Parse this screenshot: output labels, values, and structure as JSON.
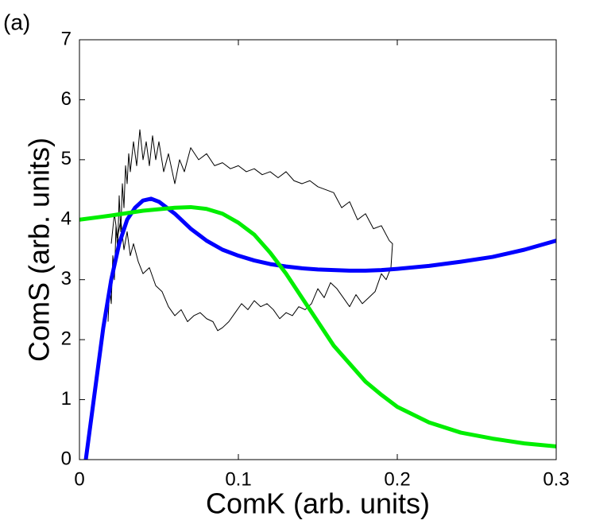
{
  "chart_data": {
    "type": "line",
    "panel_label": "(a)",
    "xlabel": "ComK (arb. units)",
    "ylabel": "ComS (arb. units)",
    "xlim": [
      0,
      0.3
    ],
    "xticks": [
      0,
      0.1,
      0.2,
      0.3
    ],
    "ylim": [
      0,
      7
    ],
    "yticks": [
      0,
      1,
      2,
      3,
      4,
      5,
      6,
      7
    ],
    "grid": false,
    "series": [
      {
        "color": "#000000",
        "linewidth": 1,
        "x": [
          0.018,
          0.019,
          0.02,
          0.021,
          0.022,
          0.023,
          0.024,
          0.025,
          0.026,
          0.027,
          0.028,
          0.029,
          0.03,
          0.031,
          0.032,
          0.034,
          0.036,
          0.038,
          0.04,
          0.042,
          0.044,
          0.046,
          0.048,
          0.05,
          0.053,
          0.056,
          0.06,
          0.063,
          0.066,
          0.07,
          0.075,
          0.08,
          0.085,
          0.09,
          0.095,
          0.1,
          0.105,
          0.11,
          0.115,
          0.12,
          0.125,
          0.13,
          0.135,
          0.14,
          0.145,
          0.15,
          0.155,
          0.16,
          0.165,
          0.17,
          0.175,
          0.18,
          0.185,
          0.19,
          0.195,
          0.197,
          0.196,
          0.193,
          0.19,
          0.186,
          0.182,
          0.178,
          0.174,
          0.17,
          0.166,
          0.162,
          0.158,
          0.154,
          0.15,
          0.146,
          0.142,
          0.138,
          0.134,
          0.13,
          0.126,
          0.122,
          0.118,
          0.114,
          0.11,
          0.106,
          0.102,
          0.098,
          0.094,
          0.09,
          0.087,
          0.084,
          0.08,
          0.076,
          0.072,
          0.068,
          0.064,
          0.06,
          0.056,
          0.052,
          0.048,
          0.044,
          0.04,
          0.037,
          0.034,
          0.032,
          0.03,
          0.028,
          0.026,
          0.024,
          0.022,
          0.02
        ],
        "values": [
          2.3,
          2.9,
          2.6,
          3.4,
          3.0,
          3.9,
          3.5,
          4.4,
          3.8,
          4.6,
          4.2,
          4.9,
          4.6,
          5.1,
          4.8,
          5.3,
          4.9,
          5.5,
          5.0,
          5.3,
          4.9,
          5.4,
          5.0,
          5.3,
          4.8,
          5.1,
          4.6,
          5.0,
          4.8,
          5.2,
          5.0,
          5.1,
          4.9,
          4.95,
          4.85,
          4.9,
          4.8,
          4.85,
          4.75,
          4.8,
          4.7,
          4.8,
          4.65,
          4.6,
          4.65,
          4.55,
          4.5,
          4.45,
          4.2,
          4.3,
          4.0,
          4.1,
          3.85,
          3.9,
          3.65,
          3.6,
          3.2,
          3.0,
          3.1,
          2.8,
          2.7,
          2.6,
          2.75,
          2.55,
          2.7,
          2.85,
          2.95,
          2.7,
          2.85,
          2.6,
          2.5,
          2.55,
          2.4,
          2.45,
          2.35,
          2.5,
          2.6,
          2.55,
          2.65,
          2.5,
          2.6,
          2.45,
          2.3,
          2.2,
          2.15,
          2.3,
          2.35,
          2.45,
          2.4,
          2.3,
          2.5,
          2.4,
          2.55,
          2.8,
          2.9,
          3.2,
          3.1,
          3.3,
          3.6,
          3.4,
          3.8,
          3.5,
          4.0,
          3.7,
          4.1,
          3.6
        ]
      },
      {
        "color": "#0000ff",
        "linewidth": 5,
        "x": [
          0.004,
          0.01,
          0.015,
          0.02,
          0.025,
          0.03,
          0.035,
          0.04,
          0.045,
          0.05,
          0.06,
          0.07,
          0.08,
          0.09,
          0.1,
          0.11,
          0.12,
          0.13,
          0.14,
          0.15,
          0.16,
          0.17,
          0.18,
          0.19,
          0.2,
          0.22,
          0.24,
          0.26,
          0.28,
          0.3
        ],
        "values": [
          0,
          1.2,
          2.2,
          3.0,
          3.6,
          4.0,
          4.2,
          4.32,
          4.35,
          4.3,
          4.1,
          3.85,
          3.65,
          3.5,
          3.4,
          3.32,
          3.26,
          3.22,
          3.19,
          3.17,
          3.16,
          3.15,
          3.15,
          3.16,
          3.18,
          3.23,
          3.3,
          3.38,
          3.5,
          3.65
        ]
      },
      {
        "color": "#00ee00",
        "linewidth": 5,
        "x": [
          0,
          0.02,
          0.04,
          0.06,
          0.07,
          0.08,
          0.09,
          0.1,
          0.11,
          0.12,
          0.13,
          0.14,
          0.15,
          0.16,
          0.17,
          0.18,
          0.19,
          0.2,
          0.22,
          0.24,
          0.26,
          0.28,
          0.3
        ],
        "values": [
          4.0,
          4.07,
          4.15,
          4.2,
          4.21,
          4.18,
          4.1,
          3.95,
          3.75,
          3.45,
          3.1,
          2.7,
          2.3,
          1.9,
          1.6,
          1.3,
          1.08,
          0.88,
          0.62,
          0.45,
          0.35,
          0.27,
          0.22
        ]
      }
    ]
  }
}
